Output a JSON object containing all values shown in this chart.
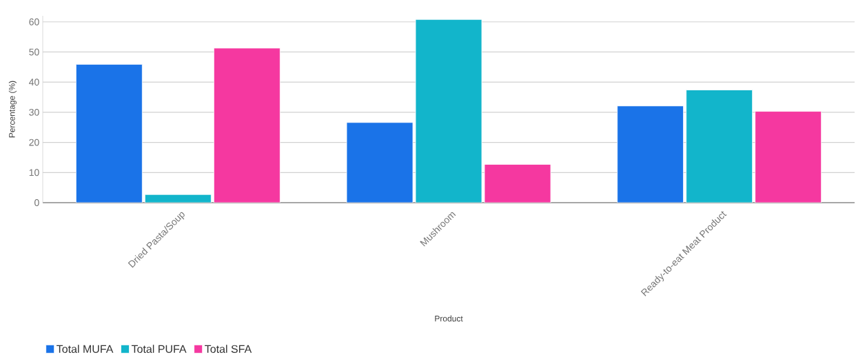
{
  "chart_data": {
    "type": "bar",
    "xlabel": "Product",
    "ylabel": "Percentage (%)",
    "categories": [
      "Dried Pasta/Soup",
      "Mushroom",
      "Ready-to-eat Meat Product"
    ],
    "series": [
      {
        "name": "Total MUFA",
        "color": "#1a73e8",
        "values": [
          45.9,
          26.6,
          32.1
        ]
      },
      {
        "name": "Total PUFA",
        "color": "#12b5cb",
        "values": [
          2.7,
          60.8,
          37.4
        ]
      },
      {
        "name": "Total SFA",
        "color": "#f538a0",
        "values": [
          51.3,
          12.7,
          30.3
        ]
      }
    ],
    "ylim": [
      0,
      62
    ],
    "yticks": [
      0,
      10,
      20,
      30,
      40,
      50,
      60
    ],
    "grid": "y",
    "legend": "bottom"
  }
}
